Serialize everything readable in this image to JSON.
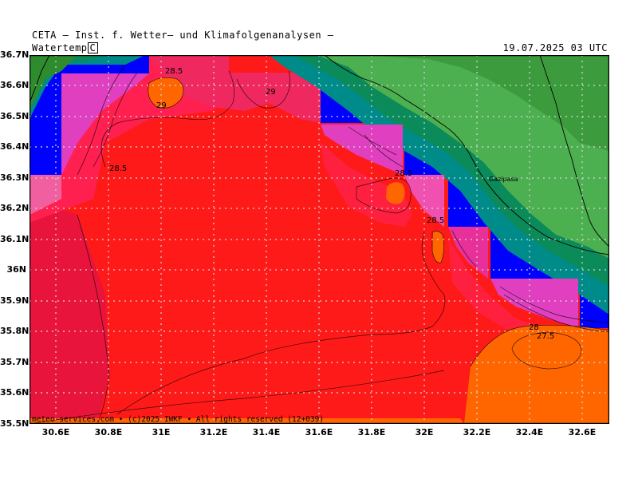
{
  "header": {
    "title": "CETA — Inst. f. Wetter— und Klimafolgenanalysen —",
    "parameter": "Watertemp",
    "unit": "C",
    "datetime": "19.07.2025 03 UTC"
  },
  "map": {
    "type": "temperature-contour",
    "lon_range": [
      30.5,
      32.7
    ],
    "lat_range": [
      35.5,
      36.7
    ],
    "x_axis_labels": [
      "30.6E",
      "30.8E",
      "31E",
      "31.2E",
      "31.4E",
      "31.6E",
      "31.8E",
      "32E",
      "32.2E",
      "32.4E",
      "32.6E"
    ],
    "y_axis_labels": [
      "36.7N",
      "36.6N",
      "36.5N",
      "36.4N",
      "36.3N",
      "36.2N",
      "36.1N",
      "36N",
      "35.9N",
      "35.8N",
      "35.7N",
      "35.6N",
      "35.5N"
    ],
    "contour_labels": [
      "28.5",
      "29",
      "28.5",
      "29",
      "28.5",
      "28.5",
      "28",
      "27.5"
    ],
    "place_labels": [
      "Gazipasa"
    ],
    "colors": {
      "land": "#4caf50",
      "land_dark": "#2e8b2e",
      "coast_band": "#0b8a5a",
      "coast_teal": "#008b8b",
      "missing": "#0000ff",
      "warm_red": "#ff1a1a",
      "cool_red": "#e8143c",
      "orange": "#ff6600",
      "magenta": "#e040c0",
      "grid": "#d8d8d8"
    }
  },
  "footer": {
    "copyright": "meteo-services.com • (c)2025 IWKF • All rights reserved (12+039)"
  }
}
